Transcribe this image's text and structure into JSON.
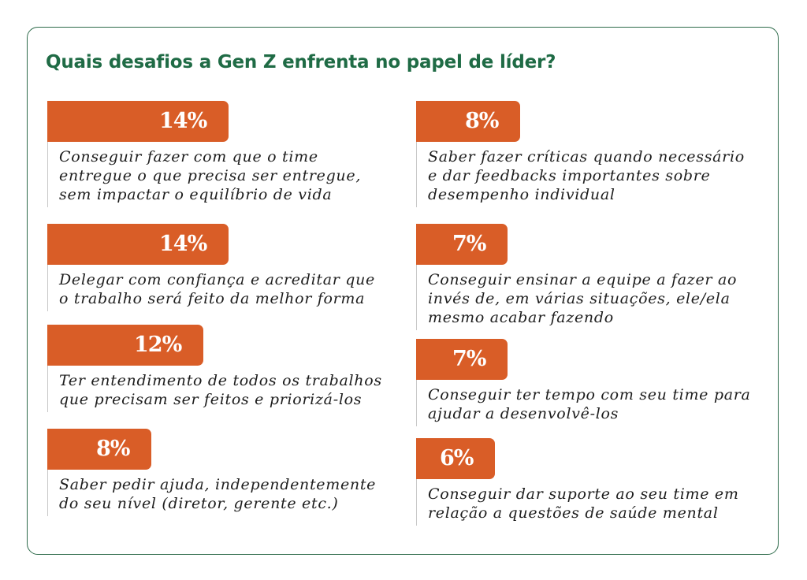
{
  "title": "Quais desafios a Gen Z enfrenta no papel de líder?",
  "colors": {
    "bar": "#d95d27",
    "title": "#1f6b45",
    "border": "#2e6b4b"
  },
  "chart_data": {
    "type": "bar",
    "orientation": "horizontal",
    "title": "Quais desafios a Gen Z enfrenta no papel de líder?",
    "categories": [
      "Conseguir fazer com que o time entregue o que precisa ser entregue, sem impactar o equilíbrio de vida",
      "Delegar com confiança e acreditar que o trabalho será feito da melhor forma",
      "Ter entendimento de todos os trabalhos que precisam ser feitos e priorizá-los",
      "Saber pedir ajuda, independentemente do seu nível (diretor, gerente etc.)",
      "Saber fazer críticas quando necessário e dar feedbacks importantes sobre desempenho individual",
      "Conseguir ensinar a equipe a fazer ao invés de, em várias situações, ele/ela mesmo acabar fazendo",
      "Conseguir ter tempo com seu time para ajudar a desenvolvê-los",
      "Conseguir dar suporte ao seu time em relação a questões de saúde mental"
    ],
    "values": [
      14,
      14,
      12,
      8,
      8,
      7,
      7,
      6
    ],
    "items": [
      {
        "value": 14,
        "label": "14%",
        "lines": [
          "Conseguir fazer com que o time",
          "entregue o que precisa ser entregue,",
          "sem impactar o equilíbrio de vida"
        ]
      },
      {
        "value": 14,
        "label": "14%",
        "lines": [
          "Delegar com confiança e acreditar que",
          "o trabalho será feito da melhor forma"
        ]
      },
      {
        "value": 12,
        "label": "12%",
        "lines": [
          "Ter entendimento de todos os trabalhos",
          "que precisam ser feitos e priorizá-los"
        ]
      },
      {
        "value": 8,
        "label": "8%",
        "lines": [
          "Saber pedir ajuda, independentemente",
          "do seu nível (diretor, gerente etc.)"
        ]
      },
      {
        "value": 8,
        "label": "8%",
        "lines": [
          "Saber fazer críticas quando necessário",
          "e dar feedbacks importantes sobre",
          "desempenho individual"
        ]
      },
      {
        "value": 7,
        "label": "7%",
        "lines": [
          "Conseguir ensinar a equipe a fazer ao",
          "invés de, em várias situações, ele/ela",
          "mesmo acabar fazendo"
        ]
      },
      {
        "value": 7,
        "label": "7%",
        "lines": [
          "Conseguir ter tempo com seu time para",
          "ajudar a desenvolvê-los"
        ]
      },
      {
        "value": 6,
        "label": "6%",
        "lines": [
          "Conseguir dar suporte ao seu time em",
          "relação a questões de saúde mental"
        ]
      }
    ],
    "unit": "%",
    "grid": false,
    "legend": "none"
  }
}
